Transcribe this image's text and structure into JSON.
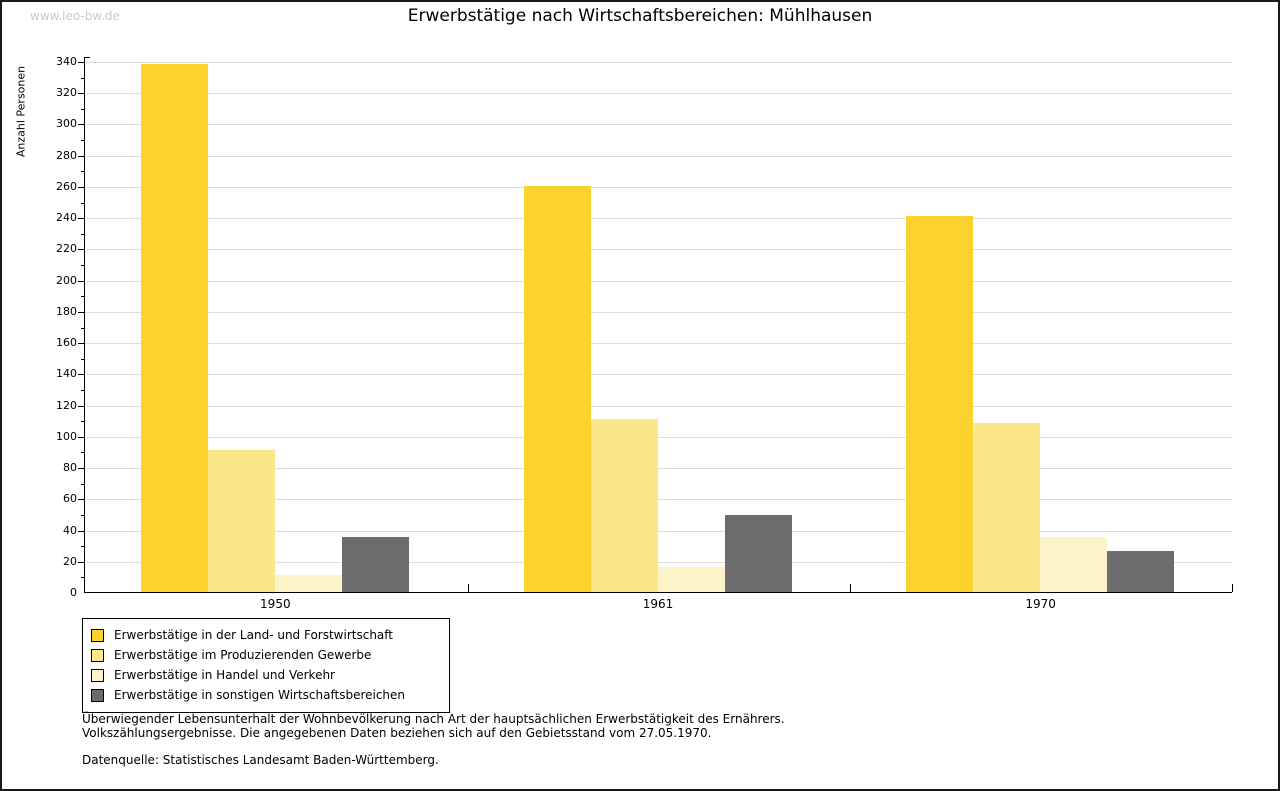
{
  "watermark": "www.leo-bw.de",
  "title": "Erwerbstätige nach Wirtschaftsbereichen: Mühlhausen",
  "chart_data": {
    "type": "bar",
    "title": "Erwerbstätige nach Wirtschaftsbereichen: Mühlhausen",
    "xlabel": "",
    "ylabel": "Anzahl Personen",
    "ylim": [
      0,
      340
    ],
    "ytick_step": 20,
    "yminor_step": 10,
    "grid": true,
    "legend_position": "bottom-left",
    "categories": [
      "1950",
      "1961",
      "1970"
    ],
    "series": [
      {
        "name": "Erwerbstätige in der Land- und Forstwirtschaft",
        "color": "#FCD22E",
        "values": [
          338,
          260,
          241
        ]
      },
      {
        "name": "Erwerbstätige im Produzierenden Gewerbe",
        "color": "#FBE78A",
        "values": [
          91,
          111,
          108
        ]
      },
      {
        "name": "Erwerbstätige in Handel und Verkehr",
        "color": "#FCF3C8",
        "values": [
          11,
          16,
          35
        ]
      },
      {
        "name": "Erwerbstätige in sonstigen Wirtschaftsbereichen",
        "color": "#6C6C6C",
        "values": [
          35,
          49,
          26
        ]
      }
    ]
  },
  "colors": {
    "grid": "#DDDDDD",
    "axis": "#000000",
    "watermark": "#C9C9C9"
  },
  "footer": {
    "line1": "Überwiegender Lebensunterhalt der Wohnbevölkerung nach Art der hauptsächlichen Erwerbstätigkeit des Ernährers.",
    "line2": "Volkszählungsergebnisse. Die angegebenen Daten beziehen sich auf den Gebietsstand vom 27.05.1970.",
    "source": "Datenquelle: Statistisches Landesamt Baden-Württemberg."
  }
}
